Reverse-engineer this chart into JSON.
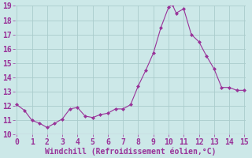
{
  "x": [
    0,
    0.5,
    1,
    1.5,
    2,
    2.5,
    3,
    3.5,
    4,
    4.5,
    5,
    5.5,
    6,
    6.5,
    7,
    7.5,
    8,
    8.5,
    9,
    9.5,
    10,
    10.25,
    10.5,
    11,
    11.5,
    12,
    12.5,
    13,
    13.5,
    14,
    14.5,
    15
  ],
  "y": [
    12.1,
    11.7,
    11.0,
    10.8,
    10.5,
    10.8,
    11.1,
    11.8,
    11.9,
    11.3,
    11.2,
    11.4,
    11.5,
    11.8,
    11.8,
    12.1,
    13.4,
    14.5,
    15.7,
    17.5,
    18.9,
    19.1,
    18.5,
    18.8,
    17.0,
    16.5,
    15.5,
    14.6,
    13.3,
    13.3,
    13.1,
    13.1
  ],
  "line_color": "#993399",
  "marker": "D",
  "marker_size": 2.0,
  "bg_color": "#cce8e8",
  "grid_color": "#aacccc",
  "tick_color": "#993399",
  "label_color": "#993399",
  "xlabel": "Windchill (Refroidissement éolien,°C)",
  "xlim": [
    -0.1,
    15.1
  ],
  "ylim": [
    10,
    19
  ],
  "xticks": [
    0,
    1,
    2,
    3,
    4,
    5,
    6,
    7,
    8,
    9,
    10,
    11,
    12,
    13,
    14,
    15
  ],
  "yticks": [
    10,
    11,
    12,
    13,
    14,
    15,
    16,
    17,
    18,
    19
  ],
  "xlabel_fontsize": 7.0,
  "tick_fontsize": 7.0
}
